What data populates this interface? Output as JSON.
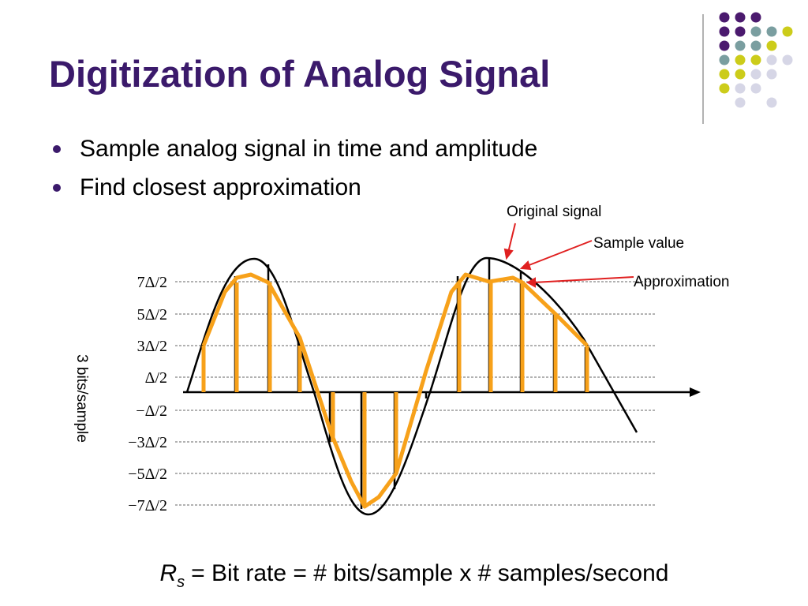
{
  "header": {
    "title": "Digitization of Analog Signal"
  },
  "bullets": [
    "Sample analog signal in time and amplitude",
    "Find closest approximation"
  ],
  "diagram": {
    "levels": [
      "7Δ/2",
      "5Δ/2",
      "3Δ/2",
      "Δ/2",
      "−Δ/2",
      "−3Δ/2",
      "−5Δ/2",
      "−7Δ/2"
    ],
    "axis_label": "3 bits/sample",
    "annotations": [
      "Original signal",
      "Sample value",
      "Approximation"
    ]
  },
  "formula": {
    "symbol": "R",
    "subscript": "s",
    "text": "= Bit rate = # bits/sample x # samples/second"
  }
}
